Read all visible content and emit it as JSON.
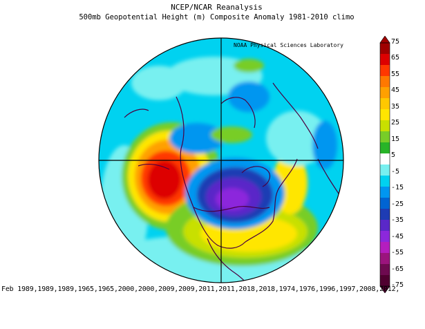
{
  "header": {
    "title": "NCEP/NCAR Reanalysis",
    "subtitle": "500mb Geopotential Height (m) Composite Anomaly 1981-2010 climo",
    "credit": "NOAA Physical Sciences Laboratory"
  },
  "footer": {
    "text": "Feb 1989,1989,1989,1965,1965,2000,2000,2009,2009,2011,2011,2018,2018,1974,1976,1996,1997,2008,2012,"
  },
  "colorbar": {
    "ticks": [
      "75",
      "65",
      "55",
      "45",
      "35",
      "25",
      "15",
      "5",
      "-5",
      "-15",
      "-25",
      "-35",
      "-45",
      "-55",
      "-65",
      "-75"
    ],
    "colors": [
      "#a00000",
      "#dd0000",
      "#ff3800",
      "#ff7800",
      "#ffa000",
      "#ffc800",
      "#ffe600",
      "#c8e000",
      "#78cd28",
      "#28b428",
      "#ffffff",
      "#78f0f0",
      "#00d2f0",
      "#0096f0",
      "#0064d2",
      "#1e3cb4",
      "#5a28c8",
      "#8c28dc",
      "#b41ebe",
      "#9b147d",
      "#6e0a50",
      "#500030"
    ]
  }
}
